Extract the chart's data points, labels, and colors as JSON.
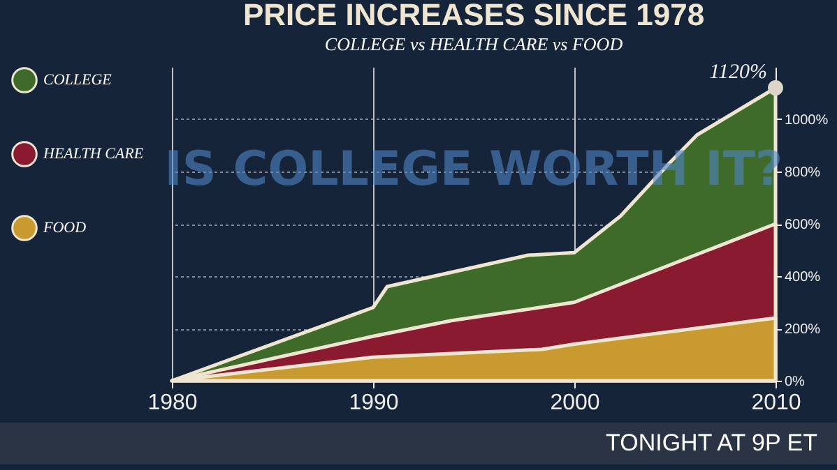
{
  "chart_data": {
    "type": "area",
    "title": "PRICE INCREASES SINCE 1978",
    "subtitle": "COLLEGE vs HEALTH CARE vs FOOD",
    "series": [
      {
        "name": "COLLEGE",
        "color": "#3f6b2a",
        "x": [
          1980,
          1990,
          1990.7,
          1997.7,
          2000,
          2002.3,
          2004.7,
          2006.1,
          2010
        ],
        "values": [
          0,
          280,
          360,
          480,
          490,
          630,
          830,
          940,
          1120
        ]
      },
      {
        "name": "HEALTH CARE",
        "color": "#8a1a30",
        "x": [
          1980,
          1990,
          1993.9,
          2000,
          2010
        ],
        "values": [
          0,
          170,
          230,
          300,
          600
        ]
      },
      {
        "name": "FOOD",
        "color": "#c89a30",
        "x": [
          1980,
          1990,
          1998.4,
          2000,
          2010
        ],
        "values": [
          0,
          90,
          120,
          140,
          240
        ]
      }
    ],
    "xlim": [
      1980,
      2010
    ],
    "xticks": [
      1980,
      1990,
      2000,
      2010
    ],
    "ylim": [
      0,
      1200
    ],
    "yticks": [
      {
        "value": 0,
        "label": "0%"
      },
      {
        "value": 200,
        "label": "200%"
      },
      {
        "value": 400,
        "label": "400%"
      },
      {
        "value": 600,
        "label": "600%"
      },
      {
        "value": 800,
        "label": "800%"
      },
      {
        "value": 1000,
        "label": "1000%"
      }
    ],
    "grid": true,
    "legend": "left",
    "annotations": [
      "IS COLLEGE WORTH IT?",
      {
        "text": "1120%",
        "x": 2010,
        "y": 1120
      },
      "TONIGHT AT 9P ET"
    ]
  }
}
